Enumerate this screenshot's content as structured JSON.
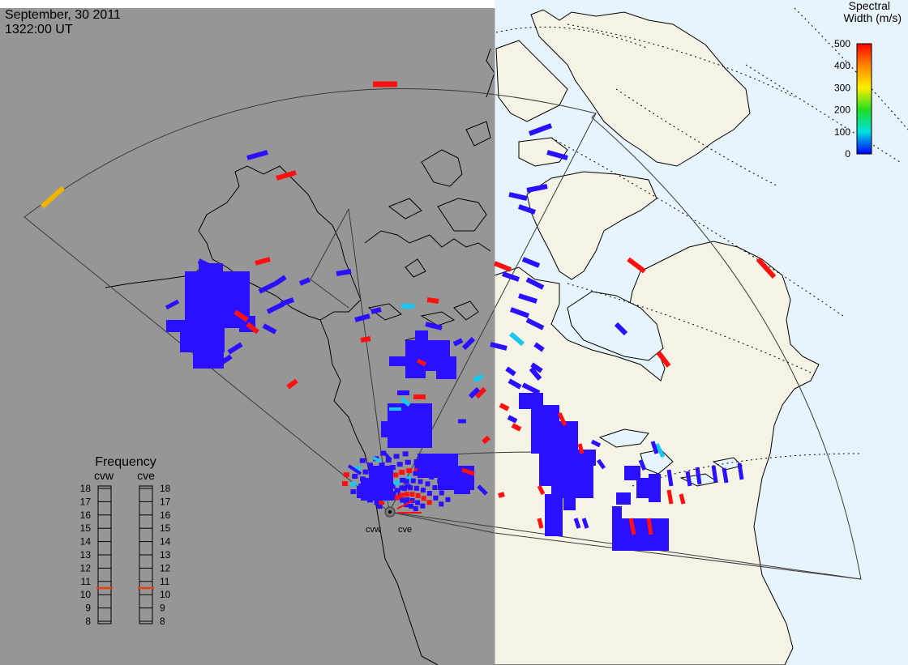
{
  "header": {
    "date": "September, 30 2011",
    "time": "1322:00 UT"
  },
  "colorbar": {
    "title_line1": "Spectral",
    "title_line2": "Width (m/s)",
    "ticks": [
      "500",
      "400",
      "300",
      "200",
      "100",
      "0"
    ],
    "gradient_colors": [
      "#ff0000",
      "#ff8800",
      "#ffee00",
      "#22dd22",
      "#00e0e0",
      "#0000ff"
    ]
  },
  "frequency_panel": {
    "title": "Frequency",
    "radars": [
      {
        "name": "cvw",
        "value_mhz": 10.5
      },
      {
        "name": "cve",
        "value_mhz": 10.5
      }
    ],
    "scale": [
      "18",
      "17",
      "16",
      "15",
      "14",
      "13",
      "12",
      "11",
      "10",
      "9",
      "8"
    ]
  },
  "radar_labels": [
    "cvw",
    "cve"
  ],
  "colors": {
    "night_side": "#969696",
    "day_ocean": "#e8f4fc",
    "day_land": "#f5f3e6",
    "echo_low_width": "#2a10ff",
    "echo_high_width": "#ff1010",
    "echo_mid_width": "#18c8f0",
    "echo_orange": "#f2b400"
  }
}
